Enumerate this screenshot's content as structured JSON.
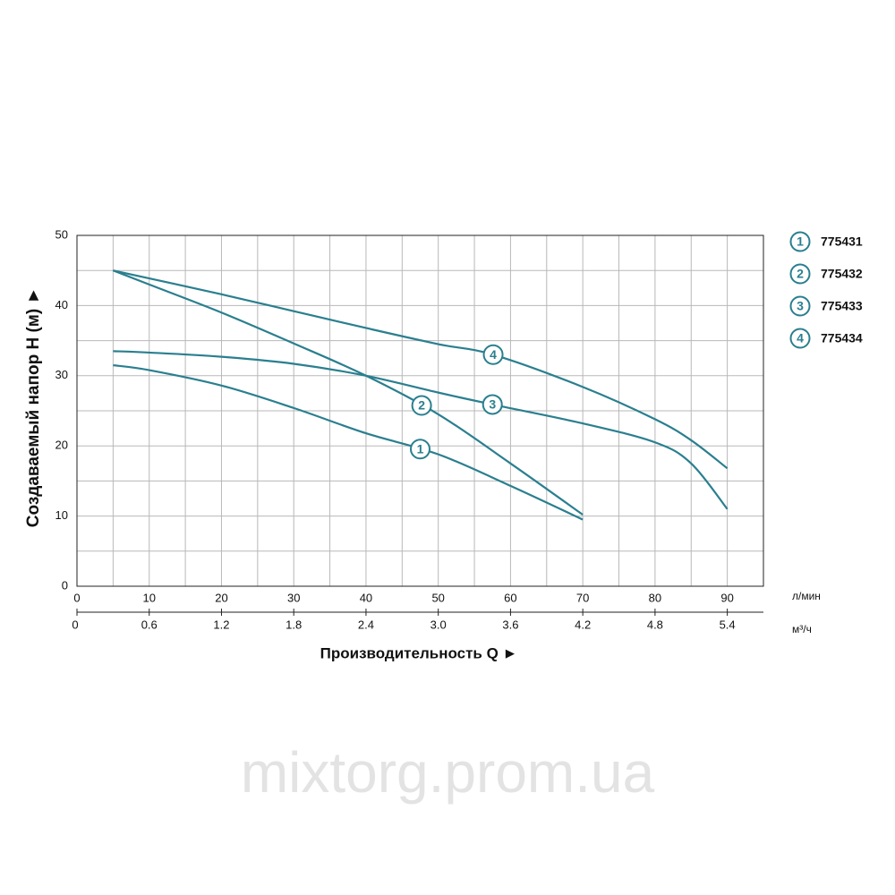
{
  "chart_data": {
    "type": "line",
    "y_label": "Создаваемый напор H (м) ►",
    "x_label": "Производительность Q ►",
    "x_unit": "л/мин",
    "x2_unit": "м³/ч",
    "watermark": "mixtorg.prom.ua",
    "xlim": [
      0,
      95
    ],
    "xticks": [
      0,
      10,
      20,
      30,
      40,
      50,
      60,
      70,
      80,
      90
    ],
    "x_minor_ticks": [
      5,
      15,
      25,
      35,
      45,
      55,
      65,
      75,
      85,
      95
    ],
    "x2lim": [
      0,
      5.7
    ],
    "x2ticks": [
      0,
      0.6,
      1.2,
      1.8,
      2.4,
      {
        "value": 3,
        "label": "3.0"
      },
      3.6,
      4.2,
      4.8,
      5.4
    ],
    "ylim": [
      0,
      50
    ],
    "yticks": [
      0,
      10,
      20,
      30,
      40,
      50
    ],
    "y_minor_ticks": [
      5,
      15,
      25,
      35,
      45
    ],
    "grid": true,
    "legend": "right",
    "series": [
      {
        "name": "775431",
        "label": "1",
        "color": "#2a7f8f",
        "label_x": 47.5,
        "x": [
          5,
          10,
          20,
          30,
          40,
          50,
          60,
          70
        ],
        "values": [
          31.5,
          30.8,
          28.6,
          25.4,
          21.8,
          18.8,
          14.3,
          9.5
        ]
      },
      {
        "name": "775432",
        "label": "2",
        "color": "#2a7f8f",
        "label_x": 47.7,
        "x": [
          5,
          10,
          20,
          30,
          40,
          50,
          60,
          70
        ],
        "values": [
          45,
          43,
          39,
          34.6,
          30,
          24.5,
          17.5,
          10.2
        ]
      },
      {
        "name": "775433",
        "label": "3",
        "color": "#2a7f8f",
        "label_x": 57.5,
        "x": [
          5,
          10,
          20,
          30,
          40,
          50,
          57.5,
          70,
          80,
          85,
          90
        ],
        "values": [
          33.5,
          33.3,
          32.7,
          31.7,
          30,
          27.6,
          25.9,
          23.2,
          20.5,
          17.5,
          11
        ]
      },
      {
        "name": "775434",
        "label": "4",
        "color": "#2a7f8f",
        "label_x": 57.6,
        "x": [
          5,
          20,
          30,
          40,
          50,
          57.6,
          70,
          80,
          85,
          90
        ],
        "values": [
          45,
          41.6,
          39.2,
          36.8,
          34.5,
          33,
          28.4,
          23.8,
          20.8,
          16.8
        ]
      }
    ]
  }
}
